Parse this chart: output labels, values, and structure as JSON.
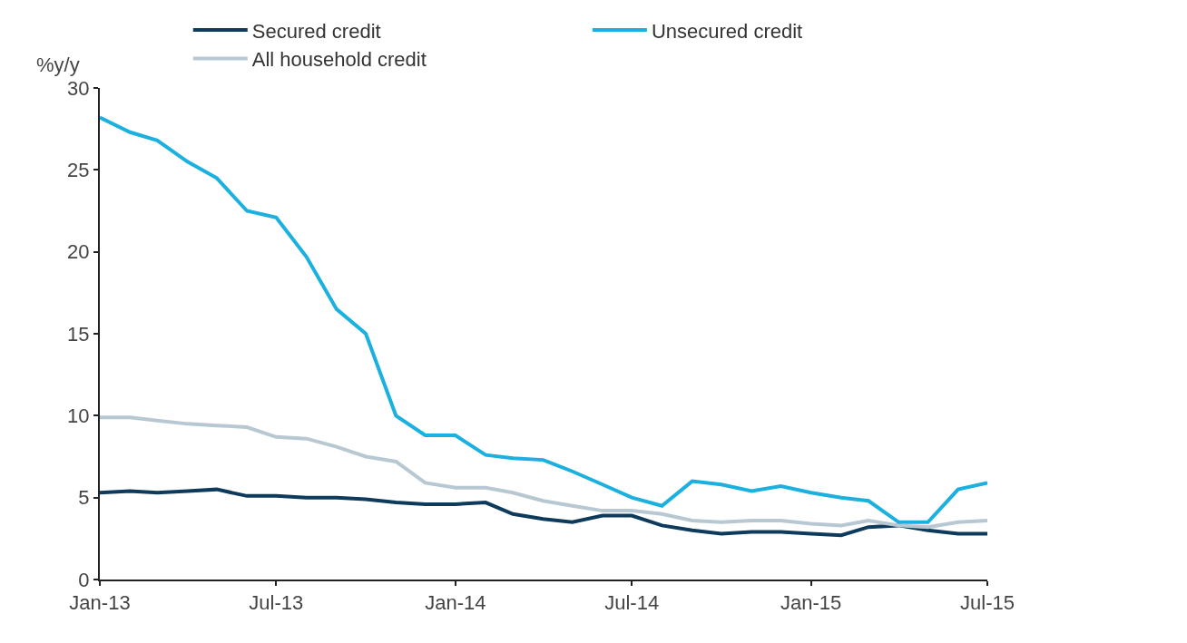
{
  "chart_data": {
    "type": "line",
    "ylabel": "%y/y",
    "x": [
      "2013-01",
      "2013-02",
      "2013-03",
      "2013-04",
      "2013-05",
      "2013-06",
      "2013-07",
      "2013-08",
      "2013-09",
      "2013-10",
      "2013-11",
      "2013-12",
      "2014-01",
      "2014-02",
      "2014-03",
      "2014-04",
      "2014-05",
      "2014-06",
      "2014-07",
      "2014-08",
      "2014-09",
      "2014-10",
      "2014-11",
      "2014-12",
      "2015-01",
      "2015-02",
      "2015-03",
      "2015-04",
      "2015-05",
      "2015-06",
      "2015-07"
    ],
    "series": [
      {
        "name": "Secured credit",
        "color": "#0e3a5c",
        "values": [
          5.3,
          5.4,
          5.3,
          5.4,
          5.5,
          5.1,
          5.1,
          5.0,
          5.0,
          4.9,
          4.7,
          4.6,
          4.6,
          4.7,
          4.0,
          3.7,
          3.5,
          3.9,
          3.9,
          3.3,
          3.0,
          2.8,
          2.9,
          2.9,
          2.8,
          2.7,
          3.2,
          3.3,
          3.0,
          2.8,
          2.8
        ]
      },
      {
        "name": "Unsecured credit",
        "color": "#1ab0e0",
        "values": [
          28.2,
          27.3,
          26.8,
          25.5,
          24.5,
          22.5,
          22.1,
          19.7,
          16.5,
          15.0,
          10.0,
          8.8,
          8.8,
          7.6,
          7.4,
          7.3,
          6.6,
          5.8,
          5.0,
          4.5,
          6.0,
          5.8,
          5.4,
          5.7,
          5.3,
          5.0,
          4.8,
          3.5,
          3.5,
          5.5,
          5.9
        ]
      },
      {
        "name": "All household credit",
        "color": "#b8c8d2",
        "values": [
          9.9,
          9.9,
          9.7,
          9.5,
          9.4,
          9.3,
          8.7,
          8.6,
          8.1,
          7.5,
          7.2,
          5.9,
          5.6,
          5.6,
          5.3,
          4.8,
          4.5,
          4.2,
          4.2,
          4.0,
          3.6,
          3.5,
          3.6,
          3.6,
          3.4,
          3.3,
          3.6,
          3.3,
          3.2,
          3.5,
          3.6
        ]
      }
    ],
    "xlim": [
      "2013-01",
      "2015-07"
    ],
    "xticks": [
      {
        "value": "2013-01",
        "label": "Jan-13"
      },
      {
        "value": "2013-07",
        "label": "Jul-13"
      },
      {
        "value": "2014-01",
        "label": "Jan-14"
      },
      {
        "value": "2014-07",
        "label": "Jul-14"
      },
      {
        "value": "2015-01",
        "label": "Jan-15"
      },
      {
        "value": "2015-07",
        "label": "Jul-15"
      }
    ],
    "ylim": [
      0,
      30
    ],
    "yticks": [
      0,
      5,
      10,
      15,
      20,
      25,
      30
    ],
    "legend": "top",
    "marker": "none",
    "line_style": "solid"
  }
}
